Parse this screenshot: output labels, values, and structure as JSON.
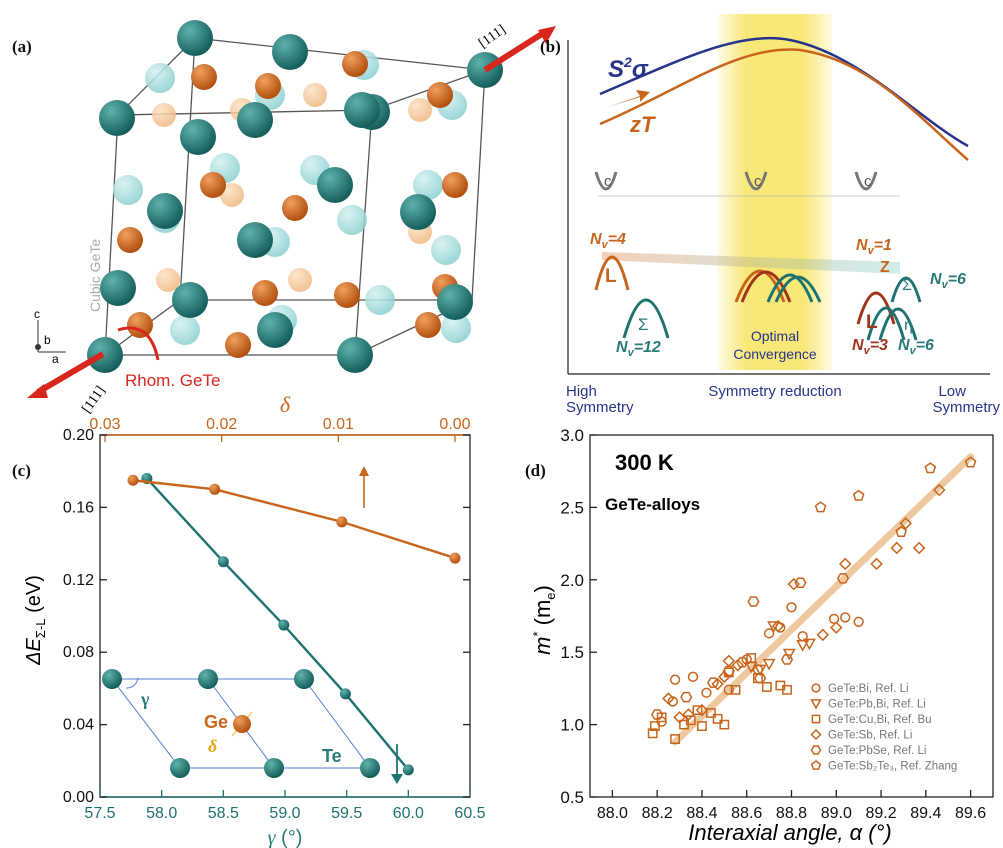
{
  "colors": {
    "teal": "#1e7370",
    "orange": "#c8651c",
    "navy": "#27348b",
    "lightblue": "#a6dede",
    "lightorange": "#f2c595",
    "red": "#d9261c",
    "yellow": "#f6e04a",
    "fit": "#eec9a0"
  },
  "panel_a": {
    "label": "(a)",
    "axis_top": "[111]",
    "axis_bottom": "[111]",
    "cubic_label": "Cubic GeTe",
    "rhom_label": "Rhom. GeTe",
    "axes_letters": [
      "c",
      "b",
      "a"
    ]
  },
  "panel_b": {
    "label": "(b)",
    "s2sigma_label": "S²σ",
    "s2sigma_base": "S",
    "s2sigma_sup": "2",
    "s2sigma_sigma": "σ",
    "zt_label": "zT",
    "band_c": "c",
    "nv_left_L": "N",
    "nv_left_L_sub": "v",
    "nv_left_L_val": "=4",
    "L_left": "L",
    "sigma_left": "Σ",
    "nv_left_sigma_val": "=12",
    "nv_right_z_val": "=1",
    "Z": "Z",
    "sigma_right": "Σ",
    "nv_right_sigma_val": "=6",
    "L_right": "L",
    "eta": "η",
    "nv_right_L_val": "=3",
    "nv_right_eta_val": "=6",
    "optimal_line1": "Optimal",
    "optimal_line2": "Convergence",
    "x_left_line1": "High",
    "x_left_line2": "Symmetry",
    "x_center": "Symmetry reduction",
    "x_right_line1": "Low",
    "x_right_line2": "Symmetry"
  },
  "panel_c": {
    "label": "(c)",
    "ge_label": "Ge",
    "te_label": "Te",
    "gamma_label": "γ",
    "delta_label": "δ"
  },
  "panel_d": {
    "label": "(d)",
    "temp_label": "300 K",
    "alloy_label": "GeTe-alloys",
    "legend": [
      {
        "marker": "circle",
        "text": "GeTe:Bi, Ref. Li"
      },
      {
        "marker": "triangle-down",
        "text": "GeTe:Pb,Bi, Ref. Li"
      },
      {
        "marker": "square",
        "text": "GeTe:Cu,Bi, Ref. Bu"
      },
      {
        "marker": "diamond",
        "text": "GeTe:Sb, Ref. Li"
      },
      {
        "marker": "hexagon",
        "text": "GeTe:PbSe, Ref. Li"
      },
      {
        "marker": "pentagon",
        "text": "GeTe:Sb₂Te₃, Ref. Zhang"
      }
    ]
  },
  "chart_data": [
    {
      "panel": "c",
      "type": "line",
      "xlabel": "γ (°)",
      "x2label": "δ",
      "ylabel": "ΔE Σ-L (eV)",
      "xlim": [
        57.5,
        60.5
      ],
      "x2lim": [
        0.03,
        0.0
      ],
      "ylim": [
        0.0,
        0.2
      ],
      "x_ticks": [
        "57.5",
        "58.0",
        "58.5",
        "59.0",
        "59.5",
        "60.0",
        "60.5"
      ],
      "x2_ticks": [
        "0.03",
        "0.02",
        "0.01",
        "0.00"
      ],
      "y_ticks": [
        "0.00",
        "0.04",
        "0.08",
        "0.12",
        "0.16",
        "0.20"
      ],
      "series": [
        {
          "axis": "gamma",
          "color": "teal",
          "x": [
            57.88,
            58.5,
            58.99,
            59.49,
            60.0
          ],
          "y": [
            0.176,
            0.13,
            0.095,
            0.057,
            0.015
          ]
        },
        {
          "axis": "delta",
          "color": "orange",
          "x": [
            0.0276,
            0.0206,
            0.0097,
            0.0
          ],
          "y": [
            0.175,
            0.17,
            0.152,
            0.132
          ]
        }
      ]
    },
    {
      "panel": "d",
      "type": "scatter",
      "xlabel": "Interaxial angle, α (°)",
      "ylabel": "m* (me)",
      "xlim": [
        87.9,
        89.7
      ],
      "ylim": [
        0.5,
        3.0
      ],
      "x_ticks": [
        "88.0",
        "88.2",
        "88.4",
        "88.6",
        "88.8",
        "89.0",
        "89.2",
        "89.4",
        "89.6"
      ],
      "y_ticks": [
        "0.5",
        "1.0",
        "1.5",
        "2.0",
        "2.5",
        "3.0"
      ],
      "fit_line": {
        "x": [
          88.28,
          89.6
        ],
        "y": [
          0.88,
          2.85
        ]
      },
      "series": [
        {
          "name": "GeTe:Bi, Ref. Li",
          "marker": "circle",
          "points": [
            [
              88.22,
              1.02
            ],
            [
              88.27,
              1.16
            ],
            [
              88.28,
              1.31
            ],
            [
              88.36,
              1.33
            ],
            [
              88.42,
              1.22
            ],
            [
              88.52,
              1.24
            ],
            [
              88.6,
              1.45
            ],
            [
              88.65,
              1.38
            ],
            [
              88.7,
              1.63
            ],
            [
              88.75,
              1.67
            ],
            [
              88.8,
              1.81
            ],
            [
              88.85,
              1.61
            ],
            [
              88.99,
              1.73
            ],
            [
              89.04,
              1.74
            ],
            [
              89.1,
              1.71
            ]
          ]
        },
        {
          "name": "GeTe:Pb,Bi, Ref. Li",
          "marker": "triangle-down",
          "points": [
            [
              88.62,
              1.4
            ],
            [
              88.66,
              1.38
            ],
            [
              88.7,
              1.42
            ],
            [
              88.72,
              1.68
            ],
            [
              88.79,
              1.49
            ],
            [
              88.85,
              1.55
            ],
            [
              88.88,
              1.56
            ]
          ]
        },
        {
          "name": "GeTe:Cu,Bi, Ref. Bu",
          "marker": "square",
          "points": [
            [
              88.18,
              0.94
            ],
            [
              88.19,
              0.99
            ],
            [
              88.22,
              1.05
            ],
            [
              88.28,
              0.9
            ],
            [
              88.32,
              1.0
            ],
            [
              88.35,
              1.03
            ],
            [
              88.4,
              0.99
            ],
            [
              88.38,
              1.1
            ],
            [
              88.44,
              1.08
            ],
            [
              88.47,
              1.04
            ],
            [
              88.5,
              1.0
            ],
            [
              88.55,
              1.24
            ],
            [
              88.62,
              1.46
            ],
            [
              88.65,
              1.32
            ],
            [
              88.69,
              1.26
            ],
            [
              88.75,
              1.27
            ],
            [
              88.78,
              1.24
            ],
            [
              88.52,
              1.36
            ]
          ]
        },
        {
          "name": "GeTe:Sb, Ref. Li",
          "marker": "diamond",
          "points": [
            [
              88.25,
              1.18
            ],
            [
              88.3,
              1.05
            ],
            [
              88.34,
              1.07
            ],
            [
              88.4,
              1.1
            ],
            [
              88.47,
              1.28
            ],
            [
              88.5,
              1.33
            ],
            [
              88.52,
              1.44
            ],
            [
              88.56,
              1.41
            ],
            [
              88.74,
              1.68
            ],
            [
              88.81,
              1.97
            ],
            [
              88.94,
              1.62
            ],
            [
              89.0,
              1.67
            ],
            [
              89.04,
              2.11
            ],
            [
              89.18,
              2.11
            ],
            [
              89.27,
              2.22
            ],
            [
              89.31,
              2.39
            ],
            [
              89.37,
              2.22
            ],
            [
              89.46,
              2.62
            ]
          ]
        },
        {
          "name": "GeTe:PbSe, Ref. Li",
          "marker": "hexagon",
          "points": [
            [
              88.2,
              1.07
            ],
            [
              88.33,
              1.19
            ],
            [
              88.45,
              1.29
            ],
            [
              88.52,
              1.37
            ],
            [
              88.58,
              1.43
            ],
            [
              88.63,
              1.85
            ],
            [
              88.66,
              1.32
            ],
            [
              88.78,
              1.45
            ],
            [
              88.84,
              1.98
            ],
            [
              89.03,
              2.01
            ]
          ]
        },
        {
          "name": "GeTe:Sb₂Te₃, Ref. Zhang",
          "marker": "pentagon",
          "points": [
            [
              88.93,
              2.5
            ],
            [
              89.1,
              2.58
            ],
            [
              89.29,
              2.33
            ],
            [
              89.42,
              2.77
            ],
            [
              89.6,
              2.81
            ]
          ]
        }
      ]
    },
    {
      "panel": "b",
      "type": "line",
      "xlabel": "Symmetry reduction",
      "series": [
        {
          "name": "S²σ",
          "color": "navy"
        },
        {
          "name": "zT",
          "color": "orange"
        }
      ]
    }
  ]
}
